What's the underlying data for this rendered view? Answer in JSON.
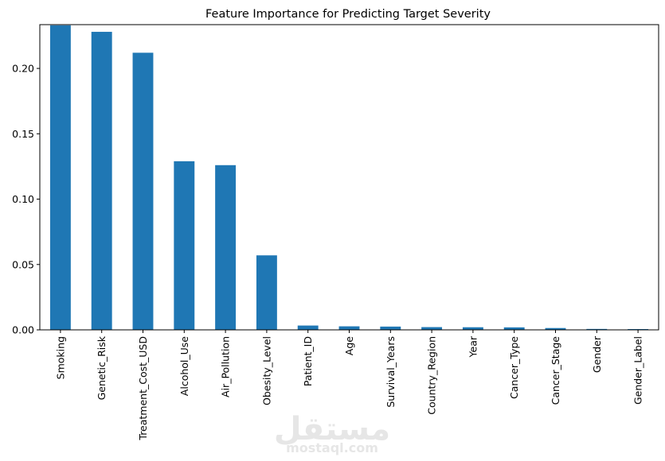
{
  "chart_data": {
    "type": "bar",
    "title": "Feature Importance for Predicting Target Severity",
    "xlabel": "",
    "ylabel": "",
    "categories": [
      "Smoking",
      "Genetic_Risk",
      "Treatment_Cost_USD",
      "Alcohol_Use",
      "Air_Pollution",
      "Obesity_Level",
      "Patient_ID",
      "Age",
      "Survival_Years",
      "Country_Region",
      "Year",
      "Cancer_Type",
      "Cancer_Stage",
      "Gender",
      "Gender_Label"
    ],
    "values": [
      0.233,
      0.228,
      0.212,
      0.129,
      0.126,
      0.057,
      0.0033,
      0.0027,
      0.0025,
      0.0021,
      0.002,
      0.0019,
      0.0014,
      0.0007,
      0.0006
    ],
    "ylim": [
      0,
      0.2335
    ],
    "yticks": [
      0.0,
      0.05,
      0.1,
      0.15,
      0.2
    ],
    "ytick_labels": [
      "0.00",
      "0.05",
      "0.10",
      "0.15",
      "0.20"
    ],
    "bar_color": "#1f77b4",
    "grid": false,
    "legend": "none"
  },
  "watermark": {
    "arabic": "مستقل",
    "latin": "mostaql.com"
  }
}
